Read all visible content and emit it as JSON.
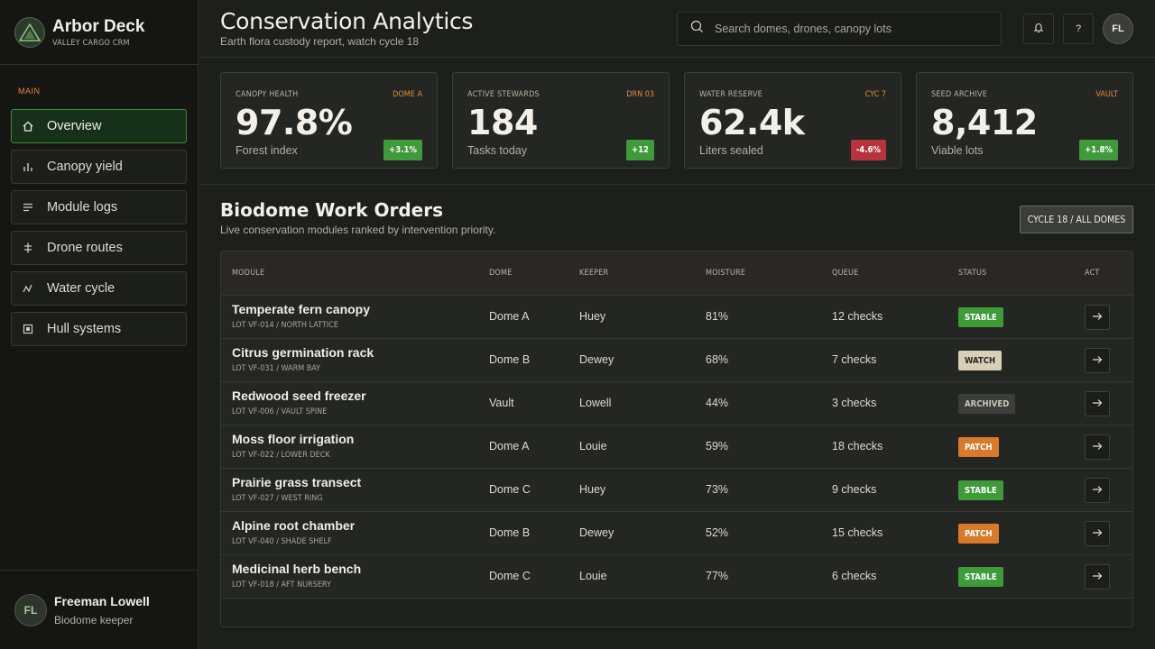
{
  "brand": {
    "name": "Arbor Deck",
    "subtitle": "VALLEY CARGO CRM"
  },
  "nav": {
    "section": "MAIN",
    "items": [
      {
        "label": "Overview",
        "icon": "home-icon",
        "active": true
      },
      {
        "label": "Canopy yield",
        "icon": "bar-chart-icon"
      },
      {
        "label": "Module logs",
        "icon": "list-icon"
      },
      {
        "label": "Drone routes",
        "icon": "route-icon"
      },
      {
        "label": "Water cycle",
        "icon": "pulse-icon"
      },
      {
        "label": "Hull systems",
        "icon": "chip-icon"
      }
    ]
  },
  "user": {
    "initials": "FL",
    "name": "Freeman Lowell",
    "role": "Biodome keeper"
  },
  "header": {
    "title": "Conservation Analytics",
    "subtitle": "Earth flora custody report, watch cycle 18",
    "search_placeholder": "Search domes, drones, canopy lots",
    "help_label": "?",
    "avatar_initials": "FL"
  },
  "kpis": [
    {
      "label": "CANOPY HEALTH",
      "tag": "DOME A",
      "value": "97.8%",
      "note": "Forest index",
      "delta": "+3.1%",
      "delta_color": "#3f9a3a"
    },
    {
      "label": "ACTIVE STEWARDS",
      "tag": "DRN 03",
      "value": "184",
      "note": "Tasks today",
      "delta": "+12",
      "delta_color": "#3f9a3a"
    },
    {
      "label": "WATER RESERVE",
      "tag": "CYC 7",
      "value": "62.4k",
      "note": "Liters sealed",
      "delta": "-4.6%",
      "delta_color": "#b8343c"
    },
    {
      "label": "SEED ARCHIVE",
      "tag": "VAULT",
      "value": "8,412",
      "note": "Viable lots",
      "delta": "+1.8%",
      "delta_color": "#3f9a3a"
    }
  ],
  "section": {
    "title": "Biodome Work Orders",
    "subtitle": "Live conservation modules ranked by intervention priority.",
    "cycle_button": "CYCLE 18 / ALL DOMES"
  },
  "table": {
    "headers": [
      "MODULE",
      "DOME",
      "KEEPER",
      "MOISTURE",
      "QUEUE",
      "STATUS",
      "ACT"
    ],
    "rows": [
      {
        "module": "Temperate fern canopy",
        "lot": "LOT VF-014 / NORTH LATTICE",
        "dome": "Dome A",
        "keeper": "Huey",
        "moisture": "81%",
        "queue": "12 checks",
        "status": "STABLE"
      },
      {
        "module": "Citrus germination rack",
        "lot": "LOT VF-031 / WARM BAY",
        "dome": "Dome B",
        "keeper": "Dewey",
        "moisture": "68%",
        "queue": "7 checks",
        "status": "WATCH"
      },
      {
        "module": "Redwood seed freezer",
        "lot": "LOT VF-006 / VAULT SPINE",
        "dome": "Vault",
        "keeper": "Lowell",
        "moisture": "44%",
        "queue": "3 checks",
        "status": "ARCHIVED"
      },
      {
        "module": "Moss floor irrigation",
        "lot": "LOT VF-022 / LOWER DECK",
        "dome": "Dome A",
        "keeper": "Louie",
        "moisture": "59%",
        "queue": "18 checks",
        "status": "PATCH"
      },
      {
        "module": "Prairie grass transect",
        "lot": "LOT VF-027 / WEST RING",
        "dome": "Dome C",
        "keeper": "Huey",
        "moisture": "73%",
        "queue": "9 checks",
        "status": "STABLE"
      },
      {
        "module": "Alpine root chamber",
        "lot": "LOT VF-040 / SHADE SHELF",
        "dome": "Dome B",
        "keeper": "Dewey",
        "moisture": "52%",
        "queue": "15 checks",
        "status": "PATCH"
      },
      {
        "module": "Medicinal herb bench",
        "lot": "LOT VF-018 / AFT NURSERY",
        "dome": "Dome C",
        "keeper": "Louie",
        "moisture": "77%",
        "queue": "6 checks",
        "status": "STABLE"
      }
    ]
  },
  "status_colors": {
    "STABLE": {
      "bg": "#3f9a3a",
      "fg": "#ffffff"
    },
    "WATCH": {
      "bg": "#d9cfb8",
      "fg": "#2a2620"
    },
    "ARCHIVED": {
      "bg": "#3b3e39",
      "fg": "#c9c6bc"
    },
    "PATCH": {
      "bg": "#d97a2a",
      "fg": "#ffffff"
    }
  }
}
